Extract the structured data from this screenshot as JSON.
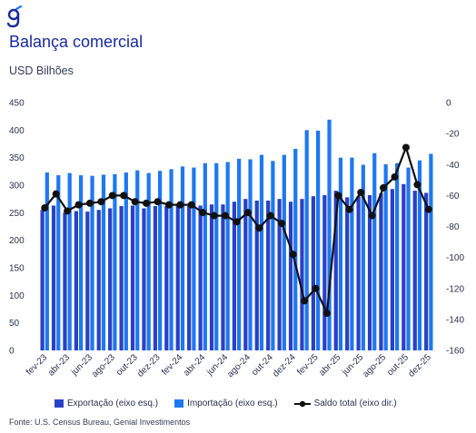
{
  "header": {
    "logo_text": "g",
    "title": "Balança comercial",
    "subtitle": "USD Bilhões"
  },
  "legend": {
    "export_label": "Exportação (eixo esq.)",
    "import_label": "Importação (eixo esq.)",
    "balance_label": "Saldo total (eixo dir.)"
  },
  "footer": {
    "source": "Fonte: U.S. Census Bureau, Genial Investimentos"
  },
  "colors": {
    "export": "#2a40c8",
    "import": "#1e78f0",
    "balance": "#111111",
    "brand": "#1a2a9a"
  },
  "chart_data": {
    "type": "bar",
    "title": "Balança comercial",
    "ylabel": "USD Bilhões",
    "y_left_lim": [
      0,
      450
    ],
    "y_left_ticks": [
      0,
      50,
      100,
      150,
      200,
      250,
      300,
      350,
      400,
      450
    ],
    "y_right_lim": [
      -160,
      0
    ],
    "y_right_ticks": [
      0,
      -20,
      -40,
      -60,
      -80,
      -100,
      -120,
      -140,
      -160
    ],
    "x_tick_labels": [
      "fev-23",
      "abr-23",
      "jun-23",
      "ago-23",
      "out-23",
      "dez-23",
      "fev-24",
      "abr-24",
      "jun-24",
      "ago-24",
      "out-24",
      "dez-24",
      "fev-25",
      "abr-25",
      "jun-25",
      "ago-25",
      "out-25",
      "dez-25"
    ],
    "categories": [
      "fev-23",
      "mar-23",
      "abr-23",
      "mai-23",
      "jun-23",
      "jul-23",
      "ago-23",
      "set-23",
      "out-23",
      "nov-23",
      "dez-23",
      "jan-24",
      "fev-24",
      "mar-24",
      "abr-24",
      "mai-24",
      "jun-24",
      "jul-24",
      "ago-24",
      "set-24",
      "out-24",
      "nov-24",
      "dez-24",
      "jan-25",
      "fev-25",
      "mar-25",
      "abr-25",
      "mai-25",
      "jun-25",
      "jul-25",
      "ago-25",
      "set-25",
      "out-25",
      "nov-25",
      "dez-25"
    ],
    "series": [
      {
        "name": "Exportação (eixo esq.)",
        "axis": "left",
        "kind": "bar",
        "values": [
          255,
          263,
          250,
          253,
          252,
          255,
          258,
          262,
          263,
          258,
          262,
          262,
          263,
          262,
          263,
          265,
          265,
          270,
          275,
          272,
          272,
          275,
          270,
          275,
          280,
          282,
          290,
          278,
          280,
          282,
          285,
          293,
          302,
          290,
          286
        ]
      },
      {
        "name": "Importação (eixo esq.)",
        "axis": "left",
        "kind": "bar",
        "values": [
          323,
          318,
          322,
          318,
          317,
          319,
          320,
          323,
          327,
          322,
          326,
          329,
          334,
          332,
          340,
          340,
          342,
          348,
          347,
          355,
          344,
          355,
          366,
          400,
          399,
          419,
          350,
          350,
          337,
          358,
          338,
          340,
          332,
          345,
          357
        ]
      },
      {
        "name": "Saldo total (eixo dir.)",
        "axis": "right",
        "kind": "line",
        "values": [
          -68,
          -59,
          -70,
          -66,
          -65,
          -64,
          -60,
          -60,
          -64,
          -65,
          -64,
          -66,
          -66,
          -66,
          -71,
          -73,
          -73,
          -77,
          -71,
          -81,
          -73,
          -78,
          -98,
          -128,
          -120,
          -136,
          -60,
          -69,
          -58,
          -73,
          -55,
          -48,
          -29,
          -53,
          -69
        ]
      }
    ]
  }
}
